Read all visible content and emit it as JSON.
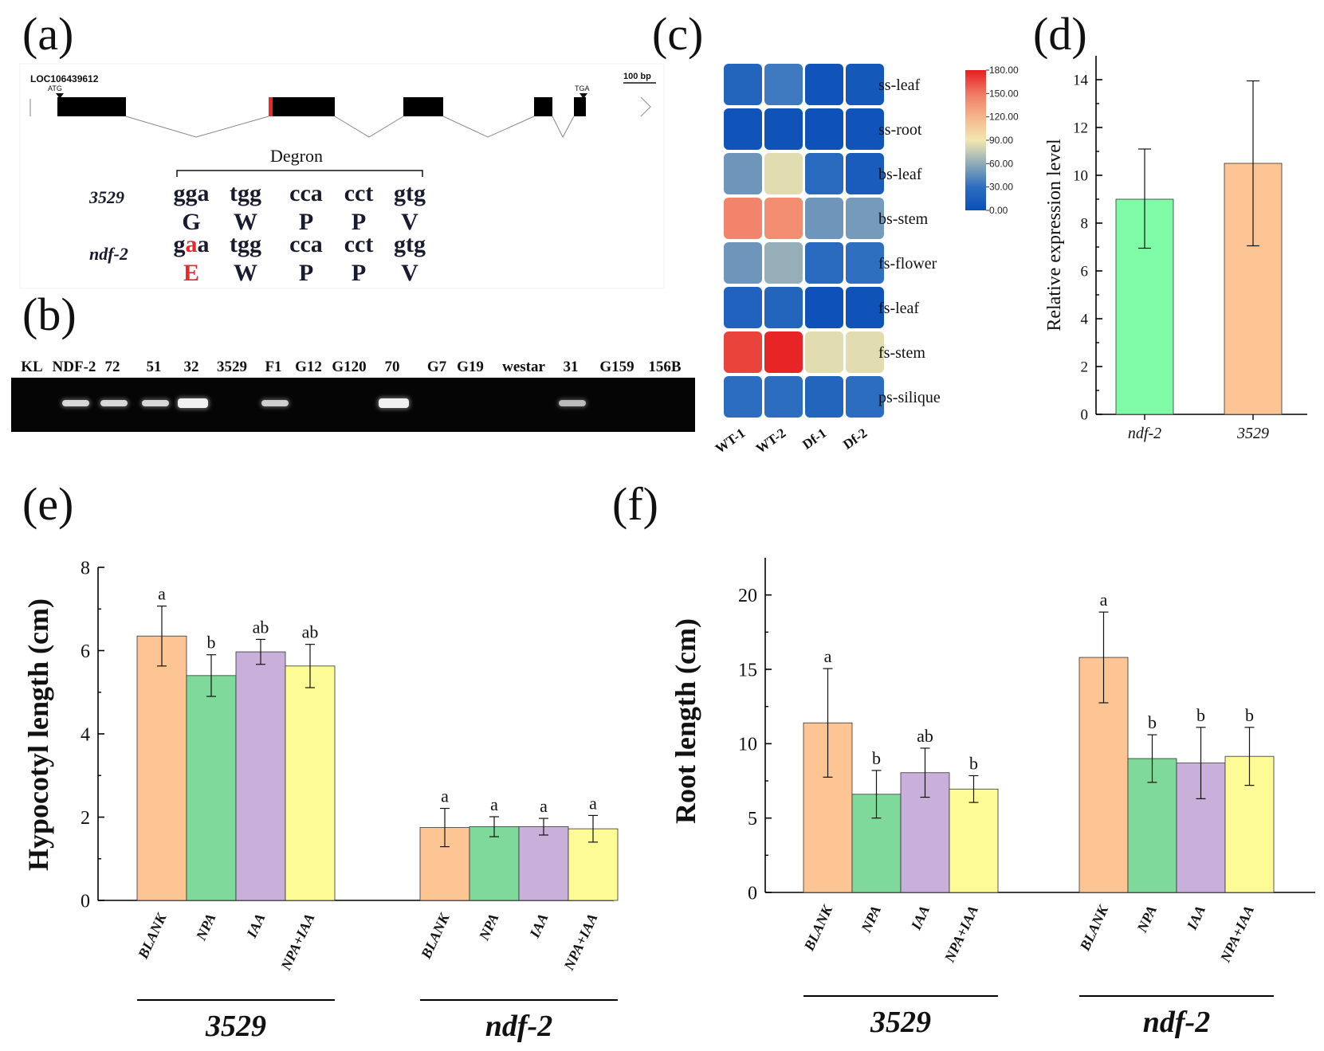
{
  "colors": {
    "bar_peach": "#fdc593",
    "bar_green": "#7fd99b",
    "bar_purple": "#c8b0db",
    "bar_yellow": "#fdfb95",
    "bar_mint": "#7ffba7",
    "exon": "#000000",
    "mutation": "#e8282b",
    "gel_bg": "#050505",
    "gel_band": "#f0f0f0",
    "text": "#111111"
  },
  "panel_labels": {
    "a": "(a)",
    "b": "(b)",
    "c": "(c)",
    "d": "(d)",
    "e": "(e)",
    "f": "(f)"
  },
  "panel_a": {
    "gene_id": "LOC106439612",
    "atg": "ATG",
    "tga": "TGA",
    "scale": "100 bp",
    "degron": "Degron",
    "wt_name": "3529",
    "mut_name": "ndf-2",
    "wt_codons": [
      "gga",
      "tgg",
      "cca",
      "cct",
      "gtg"
    ],
    "wt_aa": [
      "G",
      "W",
      "P",
      "P",
      "V"
    ],
    "mut_codon_first": [
      "g",
      "a",
      "a"
    ],
    "mut_codons_rest": [
      "tgg",
      "cca",
      "cct",
      "gtg"
    ],
    "mut_aa": [
      "E",
      "W",
      "P",
      "P",
      "V"
    ]
  },
  "panel_b": {
    "lanes": [
      "KL",
      "NDF-2",
      "72",
      "51",
      "32",
      "3529",
      "F1",
      "G12",
      "G120",
      "70",
      "G7",
      "G19",
      "westar",
      "31",
      "G159",
      "156B"
    ],
    "band_intensity": [
      0,
      0.85,
      0.85,
      0.85,
      1.0,
      0,
      0.8,
      0,
      0,
      1.0,
      0,
      0,
      0,
      0.7,
      0,
      0
    ]
  },
  "chart_data": [
    {
      "panel": "c",
      "type": "heatmap",
      "rows": [
        "ss-leaf",
        "ss-root",
        "bs-leaf",
        "bs-stem",
        "fs-flower",
        "fs-leaf",
        "fs-stem",
        "ps-silique"
      ],
      "columns": [
        "WT-1",
        "WT-2",
        "Df-1",
        "Df-2"
      ],
      "values": [
        [
          20,
          35,
          5,
          8
        ],
        [
          5,
          4,
          3,
          5
        ],
        [
          50,
          85,
          25,
          12
        ],
        [
          145,
          140,
          50,
          52
        ],
        [
          50,
          62,
          25,
          30
        ],
        [
          18,
          20,
          3,
          4
        ],
        [
          168,
          178,
          85,
          85
        ],
        [
          28,
          28,
          20,
          28
        ]
      ],
      "color_scale": {
        "min": 0,
        "max": 180,
        "ticks": [
          "180.00",
          "150.00",
          "120.00",
          "90.00",
          "60.00",
          "30.00",
          "0.00"
        ]
      }
    },
    {
      "panel": "d",
      "type": "bar",
      "categories": [
        "ndf-2",
        "3529"
      ],
      "values": [
        9.0,
        10.5
      ],
      "errors": [
        [
          6.95,
          11.1
        ],
        [
          7.05,
          13.95
        ]
      ],
      "ylabel": "Relative expression level",
      "ylim": [
        0,
        15
      ],
      "yticks": [
        "0",
        "2",
        "4",
        "6",
        "8",
        "10",
        "12",
        "14"
      ],
      "yticks_values": [
        0,
        2,
        4,
        6,
        8,
        10,
        12,
        14
      ]
    },
    {
      "panel": "e",
      "type": "bar",
      "groups": [
        "3529",
        "ndf-2"
      ],
      "categories": [
        "BLANK",
        "NPA",
        "IAA",
        "NPA+IAA"
      ],
      "series": [
        {
          "group": "3529",
          "values": [
            6.35,
            5.4,
            5.97,
            5.63
          ],
          "errors": [
            0.72,
            0.5,
            0.3,
            0.52
          ],
          "letters": [
            "a",
            "b",
            "ab",
            "ab"
          ]
        },
        {
          "group": "ndf-2",
          "values": [
            1.75,
            1.77,
            1.77,
            1.72
          ],
          "errors": [
            0.46,
            0.24,
            0.2,
            0.32
          ],
          "letters": [
            "a",
            "a",
            "a",
            "a"
          ]
        }
      ],
      "ylabel": "Hypocotyl length (cm)",
      "ylim": [
        0,
        8
      ],
      "yticks": [
        "0",
        "2",
        "4",
        "6",
        "8"
      ],
      "yticks_values": [
        0,
        2,
        4,
        6,
        8
      ]
    },
    {
      "panel": "f",
      "type": "bar",
      "groups": [
        "3529",
        "ndf-2"
      ],
      "categories": [
        "BLANK",
        "NPA",
        "IAA",
        "NPA+IAA"
      ],
      "series": [
        {
          "group": "3529",
          "values": [
            11.4,
            6.6,
            8.05,
            6.95
          ],
          "errors": [
            3.65,
            1.6,
            1.65,
            0.9
          ],
          "letters": [
            "a",
            "b",
            "ab",
            "b"
          ]
        },
        {
          "group": "ndf-2",
          "values": [
            15.8,
            9.0,
            8.7,
            9.15
          ],
          "errors": [
            3.05,
            1.6,
            2.4,
            1.95
          ],
          "letters": [
            "a",
            "b",
            "b",
            "b"
          ]
        }
      ],
      "ylabel": "Root length (cm)",
      "ylim": [
        0,
        22.5
      ],
      "yticks": [
        "0",
        "5",
        "10",
        "15",
        "20"
      ],
      "yticks_values": [
        0,
        5,
        10,
        15,
        20
      ]
    }
  ]
}
